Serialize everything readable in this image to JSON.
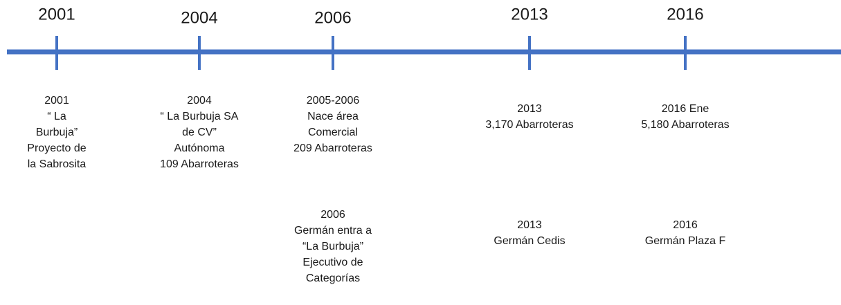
{
  "timeline": [
    {
      "year": "2001",
      "events": [
        [
          "2001",
          "“ La",
          "Burbuja”",
          "Proyecto de",
          "la Sabrosita"
        ]
      ]
    },
    {
      "year": "2004",
      "events": [
        [
          "2004",
          "“ La Burbuja SA",
          "de CV”",
          "Autónoma",
          "109 Abarroteras"
        ]
      ]
    },
    {
      "year": "2006",
      "events": [
        [
          "2005-2006",
          "Nace área",
          "Comercial",
          "209 Abarroteras"
        ],
        [
          "2006",
          "Germán entra a",
          "“La Burbuja”",
          "Ejecutivo de",
          "Categorías"
        ]
      ]
    },
    {
      "year": "2013",
      "events": [
        [
          "2013",
          "3,170 Abarroteras"
        ],
        [
          "2013",
          "Germán Cedis"
        ]
      ]
    },
    {
      "year": "2016",
      "events": [
        [
          "2016 Ene",
          "5,180 Abarroteras"
        ],
        [
          "2016",
          "Germán Plaza F"
        ]
      ]
    }
  ]
}
